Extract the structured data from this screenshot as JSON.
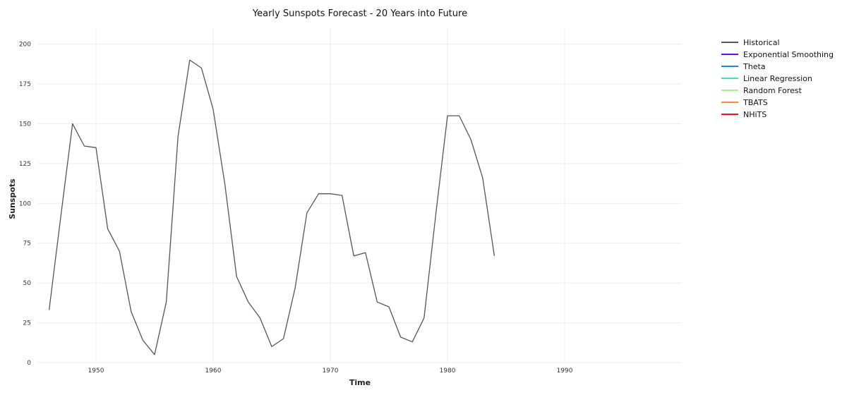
{
  "chart_data": {
    "type": "line",
    "title": "Yearly Sunspots Forecast - 20 Years into Future",
    "xlabel": "Time",
    "ylabel": "Sunspots",
    "xlim": [
      1945,
      2000
    ],
    "ylim": [
      0,
      210
    ],
    "x_ticks": [
      1950,
      1960,
      1970,
      1980,
      1990
    ],
    "y_ticks": [
      0,
      25,
      50,
      75,
      100,
      125,
      150,
      175,
      200
    ],
    "grid": true,
    "legend_position": "outside-top-right",
    "series": [
      {
        "name": "Historical",
        "color": "#555555",
        "x": [
          1946,
          1947,
          1948,
          1949,
          1950,
          1951,
          1952,
          1953,
          1954,
          1955,
          1956,
          1957,
          1958,
          1959,
          1960,
          1961,
          1962,
          1963,
          1964,
          1965,
          1966,
          1967,
          1968,
          1969,
          1970,
          1971,
          1972,
          1973,
          1974,
          1975,
          1976,
          1977,
          1978,
          1979,
          1980,
          1981,
          1982,
          1983,
          1984
        ],
        "values": [
          33,
          92,
          150,
          136,
          135,
          84,
          70,
          32,
          14,
          5,
          38,
          142,
          190,
          185,
          159,
          112,
          54,
          38,
          28,
          10,
          15,
          47,
          94,
          106,
          106,
          105,
          67,
          69,
          38,
          35,
          16,
          13,
          28,
          93,
          155,
          155,
          140,
          116,
          67
        ]
      },
      {
        "name": "Exponential Smoothing",
        "color": "#7a00ff",
        "x": [],
        "values": []
      },
      {
        "name": "Theta",
        "color": "#1e88d6",
        "x": [],
        "values": []
      },
      {
        "name": "Linear Regression",
        "color": "#40e0c8",
        "x": [],
        "values": []
      },
      {
        "name": "Random Forest",
        "color": "#a8f080",
        "x": [],
        "values": []
      },
      {
        "name": "TBATS",
        "color": "#ff8a30",
        "x": [],
        "values": []
      },
      {
        "name": "NHiTS",
        "color": "#ff1010",
        "x": [],
        "values": []
      }
    ]
  }
}
